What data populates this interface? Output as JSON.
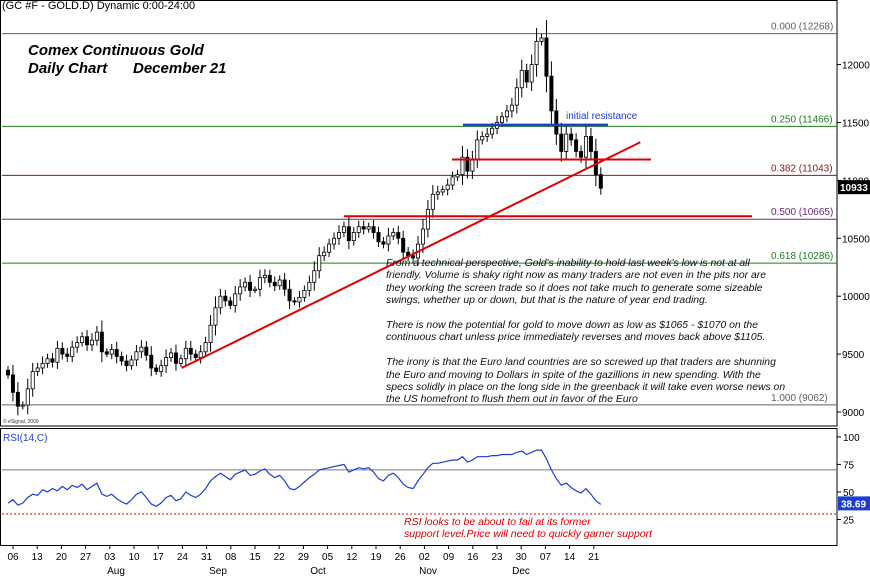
{
  "header": "(GC #F - GOLD.D) Dynamic 0:00-24:00",
  "title": "Comex Continuous Gold",
  "subtitle_left": "Daily Chart",
  "subtitle_right": "December 21",
  "copyright": "© eSignal, 2009",
  "commentary": [
    "From a technical perspective, Gold's inability to hold last week's low is not at all friendly. Volume is shaky right now as many traders are not even in the pits nor are they working the screen trade so it does not take much to generate some sizeable swings, whether up or down, but that is the nature of year end trading.",
    "There is now the potential for gold to move down as low as $1065 - $1070 on the continuous chart unless price immediately reverses and moves back above $1105.",
    "The irony is that the Euro land countries are so screwed up that traders are shunning the Euro and moving to Dollars in spite of the gazillions in new spending. With the specs solidly in place on the long side in the greenback it will take even worse news on the US homefront to flush them out in favor of the Euro"
  ],
  "rsi_note": [
    "RSI looks to be about to fail at its former",
    "support level.Price will need to quickly garner support"
  ],
  "chart_data": {
    "type": "candlestick",
    "price_axis": {
      "ticks": [
        "9000",
        "9500",
        "10000",
        "10500",
        "11000",
        "11500",
        "12000"
      ],
      "range": [
        9000,
        12300
      ],
      "last_price_label": "10933",
      "last_price": 10933
    },
    "fib_levels": [
      {
        "label": "0.000 (12268)",
        "value": 12268,
        "color": "#606060"
      },
      {
        "label": "0.250 (11466)",
        "value": 11466,
        "color": "#1e7e1e"
      },
      {
        "label": "0.382 (11043)",
        "value": 11043,
        "color": "#8b1a1a"
      },
      {
        "label": "0.500 (10665)",
        "value": 10665,
        "color": "#6a2a7a"
      },
      {
        "label": "0.618 (10286)",
        "value": 10286,
        "color": "#1e7e1e"
      },
      {
        "label": "1.000 (9062)",
        "value": 9062,
        "color": "#606060"
      }
    ],
    "annotation": {
      "label": "initial resistance",
      "value": 11480,
      "color": "#1c3fd0"
    },
    "support_lines": [
      {
        "value": 11180
      },
      {
        "value": 10690
      }
    ],
    "trendline": {
      "from": [
        23,
        9380
      ],
      "to": [
        128,
        11330
      ]
    },
    "dates": {
      "labels": [
        "06",
        "13",
        "20",
        "27",
        "03",
        "10",
        "17",
        "24",
        "31",
        "08",
        "15",
        "22",
        "29",
        "05",
        "12",
        "19",
        "26",
        "02",
        "09",
        "16",
        "23",
        "30",
        "07",
        "14",
        "21"
      ],
      "months": [
        "Aug",
        "Sep",
        "Oct",
        "Nov",
        "Dec"
      ]
    },
    "closes": [
      9320,
      9170,
      9050,
      9060,
      9200,
      9350,
      9380,
      9420,
      9460,
      9430,
      9550,
      9500,
      9480,
      9560,
      9600,
      9650,
      9580,
      9620,
      9690,
      9520,
      9500,
      9540,
      9480,
      9440,
      9400,
      9450,
      9520,
      9560,
      9490,
      9380,
      9350,
      9400,
      9470,
      9510,
      9420,
      9460,
      9550,
      9500,
      9470,
      9520,
      9600,
      9750,
      9900,
      10000,
      9960,
      9920,
      10020,
      10080,
      10120,
      10050,
      10060,
      10160,
      10180,
      10120,
      10090,
      10140,
      10060,
      9960,
      9950,
      9990,
      10050,
      10120,
      10220,
      10350,
      10380,
      10450,
      10500,
      10550,
      10600,
      10480,
      10550,
      10600,
      10580,
      10600,
      10550,
      10470,
      10450,
      10520,
      10550,
      10500,
      10380,
      10350,
      10330,
      10450,
      10580,
      10750,
      10880,
      10900,
      10920,
      10960,
      11030,
      11050,
      11200,
      11080,
      11180,
      11350,
      11380,
      11400,
      11450,
      11500,
      11550,
      11600,
      11650,
      11800,
      11950,
      11850,
      12000,
      12200,
      12230,
      11900,
      11600,
      11400,
      11250,
      11400,
      11350,
      11250,
      11200,
      11380,
      11250,
      11050,
      10933
    ],
    "rsi": {
      "label": "RSI(14,C)",
      "ticks": [
        "25",
        "50",
        "75",
        "100"
      ],
      "levels": [
        30,
        70
      ],
      "last_label": "38.69",
      "last": 38.69,
      "values": [
        40,
        43,
        38,
        40,
        45,
        48,
        47,
        52,
        50,
        53,
        51,
        55,
        52,
        56,
        54,
        57,
        52,
        55,
        58,
        48,
        46,
        48,
        44,
        41,
        39,
        43,
        48,
        50,
        45,
        39,
        37,
        40,
        45,
        47,
        42,
        44,
        50,
        47,
        45,
        48,
        53,
        60,
        64,
        67,
        64,
        61,
        66,
        68,
        70,
        65,
        66,
        69,
        71,
        66,
        63,
        65,
        60,
        53,
        52,
        55,
        59,
        63,
        66,
        70,
        71,
        72,
        73,
        74,
        75,
        68,
        70,
        72,
        71,
        72,
        68,
        62,
        60,
        65,
        67,
        63,
        57,
        54,
        53,
        60,
        66,
        72,
        76,
        76,
        77,
        78,
        79,
        79,
        82,
        77,
        79,
        82,
        82,
        82,
        83,
        83,
        84,
        84,
        84,
        86,
        87,
        84,
        86,
        88,
        88,
        80,
        70,
        62,
        56,
        58,
        54,
        51,
        49,
        53,
        48,
        42,
        38.69
      ]
    }
  }
}
